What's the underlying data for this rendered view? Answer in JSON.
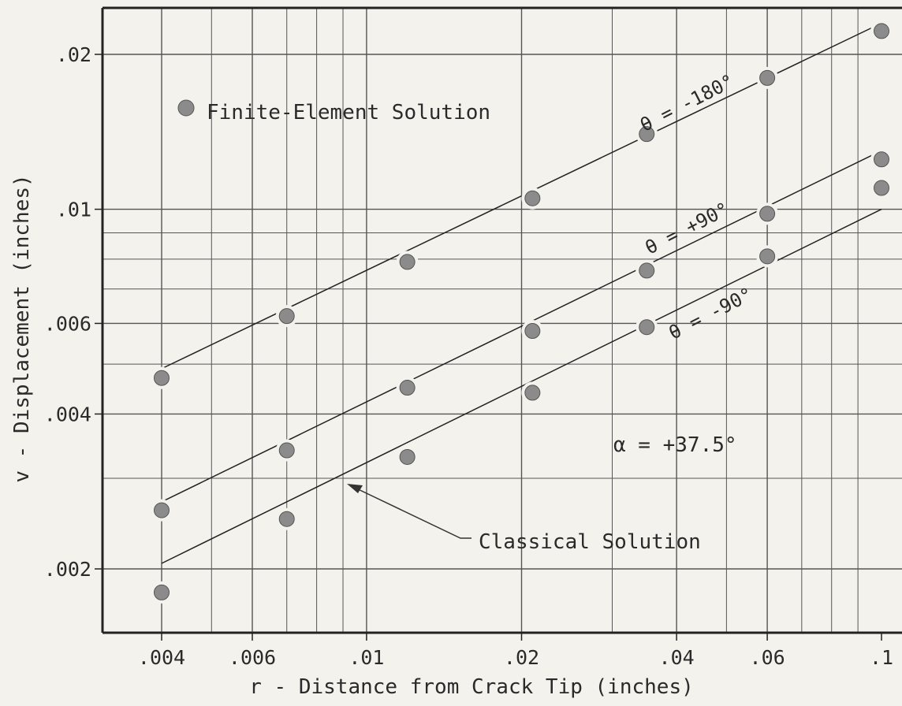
{
  "chart_data": {
    "type": "scatter",
    "title": "",
    "xlabel": "r - Distance from Crack Tip (inches)",
    "ylabel": "v - Displacement (inches)",
    "xscale": "log",
    "yscale": "log",
    "xlim": [
      0.003,
      0.1
    ],
    "ylim": [
      0.0017,
      0.023
    ],
    "grid": true,
    "x_ticks": [
      {
        "value": 0.004,
        "label": ".004"
      },
      {
        "value": 0.006,
        "label": ".006"
      },
      {
        "value": 0.01,
        "label": ".01"
      },
      {
        "value": 0.02,
        "label": ".02"
      },
      {
        "value": 0.04,
        "label": ".04"
      },
      {
        "value": 0.06,
        "label": ".06"
      },
      {
        "value": 0.1,
        "label": ".1"
      }
    ],
    "y_ticks": [
      {
        "value": 0.002,
        "label": ".002"
      },
      {
        "value": 0.004,
        "label": ".004"
      },
      {
        "value": 0.006,
        "label": ".006"
      },
      {
        "value": 0.01,
        "label": ".01"
      },
      {
        "value": 0.02,
        "label": ".02"
      }
    ],
    "legend": {
      "label": "Finite-Element Solution",
      "position": "top-left"
    },
    "annotations": {
      "alpha": "α = +37.5°",
      "classical": "Classical Solution"
    },
    "series": [
      {
        "label": "θ = -180°",
        "points": [
          {
            "x": 0.004,
            "y": 0.0047
          },
          {
            "x": 0.007,
            "y": 0.0062
          },
          {
            "x": 0.012,
            "y": 0.0079
          },
          {
            "x": 0.021,
            "y": 0.0105
          },
          {
            "x": 0.035,
            "y": 0.014
          },
          {
            "x": 0.06,
            "y": 0.018
          },
          {
            "x": 0.1,
            "y": 0.0222
          }
        ],
        "classical_line": [
          [
            0.004,
            0.0049
          ],
          [
            0.1,
            0.023
          ]
        ]
      },
      {
        "label": "θ = +90°",
        "points": [
          {
            "x": 0.004,
            "y": 0.0026
          },
          {
            "x": 0.007,
            "y": 0.0034
          },
          {
            "x": 0.012,
            "y": 0.0045
          },
          {
            "x": 0.021,
            "y": 0.0058
          },
          {
            "x": 0.035,
            "y": 0.0076
          },
          {
            "x": 0.06,
            "y": 0.0098
          },
          {
            "x": 0.1,
            "y": 0.0125
          }
        ],
        "classical_line": [
          [
            0.004,
            0.0027
          ],
          [
            0.1,
            0.013
          ]
        ]
      },
      {
        "label": "θ = -90°",
        "points": [
          {
            "x": 0.004,
            "y": 0.0018
          },
          {
            "x": 0.007,
            "y": 0.0025
          },
          {
            "x": 0.012,
            "y": 0.0033
          },
          {
            "x": 0.021,
            "y": 0.0044
          },
          {
            "x": 0.035,
            "y": 0.0059
          },
          {
            "x": 0.06,
            "y": 0.0081
          },
          {
            "x": 0.1,
            "y": 0.011
          }
        ],
        "classical_line": [
          [
            0.004,
            0.00205
          ],
          [
            0.1,
            0.01
          ]
        ]
      }
    ]
  }
}
